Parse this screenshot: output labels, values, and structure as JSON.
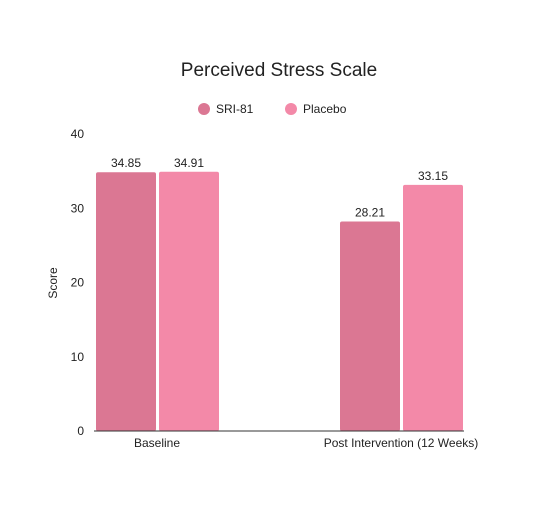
{
  "chart_data": {
    "type": "bar",
    "title": "Perceived Stress Scale",
    "xlabel": "",
    "ylabel": "Score",
    "categories": [
      "Baseline",
      "Post Intervention (12 Weeks)"
    ],
    "series": [
      {
        "name": "SRI-81",
        "values": [
          34.85,
          28.21
        ],
        "color": "#db7793"
      },
      {
        "name": "Placebo",
        "values": [
          34.91,
          33.15
        ],
        "color": "#f389a8"
      }
    ],
    "ylim": [
      0,
      40
    ],
    "yticks": [
      0,
      10,
      20,
      30,
      40
    ],
    "grid": false,
    "legend_position": "top-center",
    "data_labels": [
      "34.85",
      "34.91",
      "28.21",
      "33.15"
    ]
  }
}
